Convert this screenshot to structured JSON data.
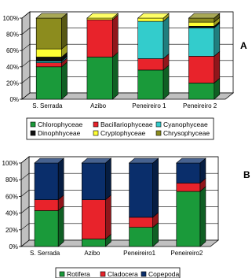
{
  "chart_data": [
    {
      "type": "bar",
      "stacked": true,
      "panel_label": "A",
      "categories": [
        "S. Serrada",
        "Azibo",
        "Peneireiro 1",
        "Peneireiro 2"
      ],
      "y_ticks": [
        "0%",
        "20%",
        "40%",
        "60%",
        "80%",
        "100%"
      ],
      "ylim": [
        0,
        100
      ],
      "grid": true,
      "legend_position": "bottom",
      "series": [
        {
          "name": "Chlorophyceae",
          "color": "#1a9a3a",
          "values": [
            40,
            52,
            36,
            20
          ]
        },
        {
          "name": "Bacillariophyceae",
          "color": "#e8232b",
          "values": [
            5,
            46,
            14,
            33
          ]
        },
        {
          "name": "Cyanophyceae",
          "color": "#33cccc",
          "values": [
            2,
            0,
            46,
            35
          ]
        },
        {
          "name": "Dinophhyceae",
          "color": "#111111",
          "values": [
            5,
            0,
            0,
            2
          ]
        },
        {
          "name": "Cryptophyceae",
          "color": "#ffff33",
          "values": [
            10,
            2,
            4,
            5
          ]
        },
        {
          "name": "Chrysophyceae",
          "color": "#8c8c1e",
          "values": [
            38,
            0,
            0,
            5
          ]
        }
      ]
    },
    {
      "type": "bar",
      "stacked": true,
      "panel_label": "B",
      "categories": [
        "S. Serrada",
        "Azibo",
        "Peneireiro1",
        "Peneireiro2"
      ],
      "y_ticks": [
        "0%",
        "20%",
        "40%",
        "60%",
        "80%",
        "100%"
      ],
      "ylim": [
        0,
        100
      ],
      "grid": true,
      "legend_position": "bottom",
      "series": [
        {
          "name": "Rotifera",
          "color": "#1a9a3a",
          "values": [
            43,
            9,
            23,
            66
          ]
        },
        {
          "name": "Cladocera",
          "color": "#e8232b",
          "values": [
            13,
            47,
            12,
            10
          ]
        },
        {
          "name": "Copepoda",
          "color": "#0a2e6b",
          "values": [
            44,
            44,
            65,
            24
          ]
        }
      ]
    }
  ]
}
